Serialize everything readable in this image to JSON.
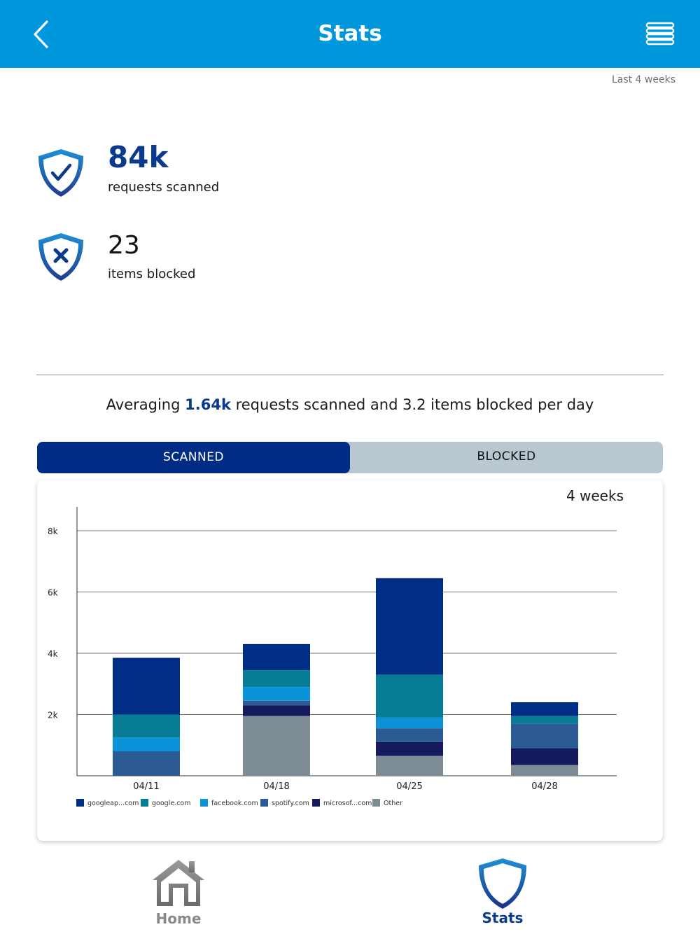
{
  "header": {
    "title": "Stats",
    "back_icon": "chevron-left-icon",
    "menu_icon": "menu-icon"
  },
  "period_label": "Last 4 weeks",
  "stats": {
    "scanned": {
      "value": "84k",
      "caption": "requests scanned",
      "icon": "shield-check-icon"
    },
    "blocked": {
      "value": "23",
      "caption": "items blocked",
      "icon": "shield-x-icon"
    }
  },
  "averaging": {
    "prefix": "Averaging ",
    "highlight": "1.64k",
    "suffix": " requests scanned and 3.2 items blocked per day"
  },
  "segments": {
    "scanned_label": "SCANNED",
    "blocked_label": "BLOCKED",
    "selected": "scanned"
  },
  "chart_range_label": "4 weeks",
  "chart_data": {
    "type": "bar",
    "stacked": true,
    "title": "",
    "xlabel": "",
    "ylabel": "",
    "ylim": [
      0,
      8000
    ],
    "y_ticks": [
      {
        "value": 2000,
        "label": "2k"
      },
      {
        "value": 4000,
        "label": "4k"
      },
      {
        "value": 6000,
        "label": "6k"
      },
      {
        "value": 8000,
        "label": "8k"
      }
    ],
    "categories": [
      "04/11",
      "04/18",
      "04/25",
      "04/28"
    ],
    "series": [
      {
        "name": "Other",
        "color": "#7d8b95",
        "values": [
          0,
          1950,
          650,
          350
        ]
      },
      {
        "name": "microsof...com",
        "color": "#141a5c",
        "values": [
          0,
          350,
          450,
          550
        ]
      },
      {
        "name": "spotify.com",
        "color": "#2b5a95",
        "values": [
          800,
          150,
          450,
          800
        ]
      },
      {
        "name": "facebook.com",
        "color": "#0b93da",
        "values": [
          450,
          450,
          350,
          0
        ]
      },
      {
        "name": "google.com",
        "color": "#067d95",
        "values": [
          750,
          550,
          1400,
          250
        ]
      },
      {
        "name": "googleap...com",
        "color": "#002d85",
        "values": [
          1850,
          850,
          3150,
          450
        ]
      }
    ],
    "legend_order": [
      "googleap...com",
      "google.com",
      "facebook.com",
      "spotify.com",
      "microsof...com",
      "Other"
    ],
    "legend_position": "bottom-left"
  },
  "tabbar": {
    "home_label": "Home",
    "stats_label": "Stats",
    "home_icon": "home-icon",
    "stats_icon": "shield-icon",
    "active": "stats"
  },
  "colors": {
    "header_bg": "#0097dc",
    "primary_dark": "#002c86",
    "accent_text": "#0a3a8c",
    "segment_inactive": "#b8c7d0"
  }
}
